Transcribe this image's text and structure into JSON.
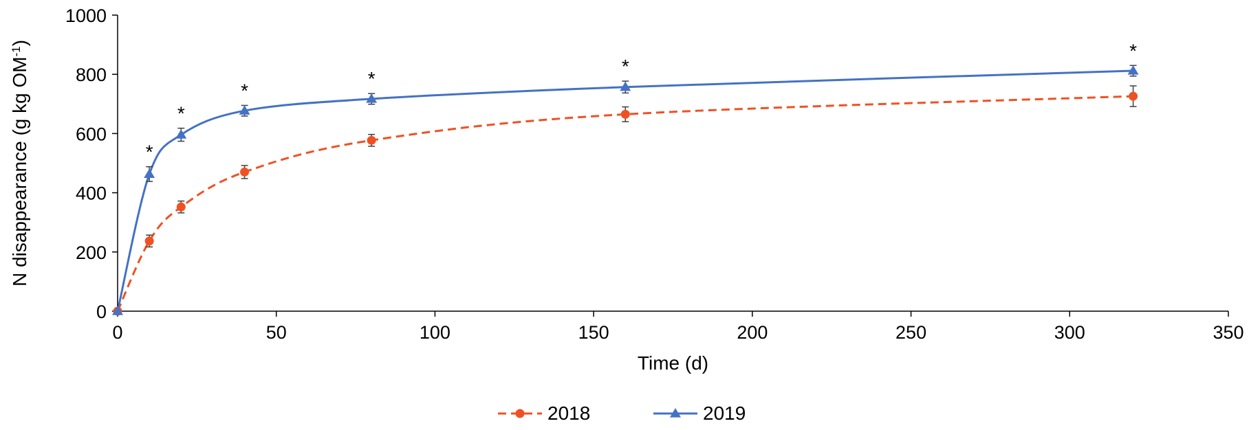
{
  "chart_data": {
    "type": "line",
    "title": "",
    "xlabel": "Time (d)",
    "ylabel": "N disappearance (g kg OM",
    "ylabel_sup": "-1",
    "ylabel_suffix": ")",
    "xlim": [
      0,
      350
    ],
    "ylim": [
      0,
      1000
    ],
    "xticks": [
      0,
      50,
      100,
      150,
      200,
      250,
      300,
      350
    ],
    "yticks": [
      0,
      200,
      400,
      600,
      800,
      1000
    ],
    "grid": false,
    "legend_position": "bottom",
    "significance_marker": "*",
    "significance_at_x": [
      10,
      20,
      40,
      80,
      160,
      320
    ],
    "series": [
      {
        "name": "2018",
        "color": "#F05123",
        "line_style": "dashed",
        "marker": "circle",
        "x": [
          0,
          10,
          20,
          40,
          80,
          160,
          320
        ],
        "y": [
          0,
          237,
          352,
          470,
          577,
          665,
          726
        ],
        "error": [
          0,
          20,
          20,
          22,
          20,
          25,
          35
        ]
      },
      {
        "name": "2019",
        "color": "#4472C4",
        "line_style": "solid",
        "marker": "triangle",
        "x": [
          0,
          10,
          20,
          40,
          80,
          160,
          320
        ],
        "y": [
          0,
          463,
          596,
          677,
          717,
          757,
          812
        ],
        "error": [
          0,
          25,
          22,
          18,
          18,
          20,
          18
        ]
      }
    ]
  }
}
